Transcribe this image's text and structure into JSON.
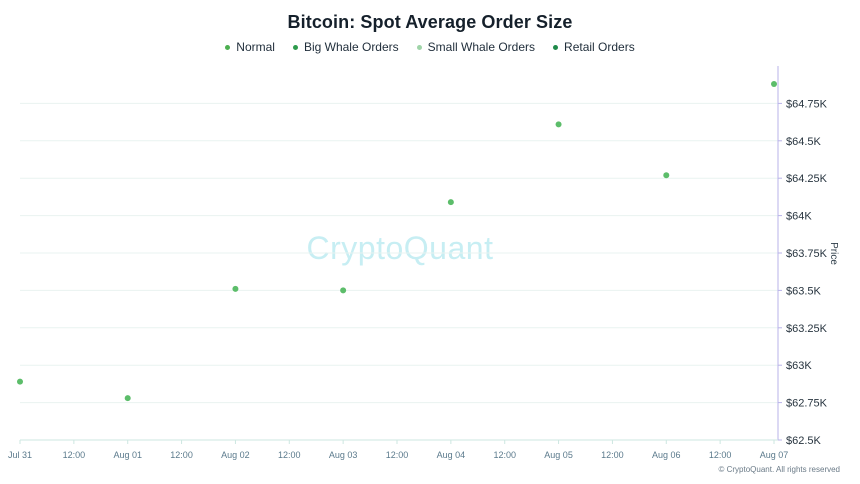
{
  "page": {
    "footer": "© CryptoQuant. All rights reserved",
    "watermark": "CryptoQuant"
  },
  "chart_data": {
    "type": "scatter",
    "title": "Bitcoin: Spot Average Order Size",
    "legend": {
      "placement": "top-center",
      "items": [
        {
          "name": "Normal",
          "color": "#4caf50"
        },
        {
          "name": "Big Whale Orders",
          "color": "#2e9b4d"
        },
        {
          "name": "Small Whale Orders",
          "color": "#9fd4a8"
        },
        {
          "name": "Retail Orders",
          "color": "#1f8a4a"
        }
      ]
    },
    "ylabel": "Price",
    "ylim": [
      62500,
      65000
    ],
    "y_ticks": [
      62500,
      62750,
      63000,
      63250,
      63500,
      63750,
      64000,
      64250,
      64500,
      64750
    ],
    "y_tick_labels": [
      "$62.5K",
      "$62.75K",
      "$63K",
      "$63.25K",
      "$63.5K",
      "$63.75K",
      "$64K",
      "$64.25K",
      "$64.5K",
      "$64.75K"
    ],
    "x_tick_labels": [
      "Jul 31",
      "12:00",
      "Aug 01",
      "12:00",
      "Aug 02",
      "12:00",
      "Aug 03",
      "12:00",
      "Aug 04",
      "12:00",
      "Aug 05",
      "12:00",
      "Aug 06",
      "12:00",
      "Aug 07"
    ],
    "grid": true,
    "series": [
      {
        "name": "Normal",
        "color": "#5cbd6a",
        "points": [
          {
            "x": "Jul 31",
            "y": 62890
          },
          {
            "x": "Aug 01",
            "y": 62780
          },
          {
            "x": "Aug 02",
            "y": 63510
          },
          {
            "x": "Aug 03",
            "y": 63500
          },
          {
            "x": "Aug 04",
            "y": 64090
          },
          {
            "x": "Aug 05",
            "y": 64610
          },
          {
            "x": "Aug 06",
            "y": 64270
          },
          {
            "x": "Aug 07",
            "y": 64880
          }
        ]
      }
    ]
  }
}
